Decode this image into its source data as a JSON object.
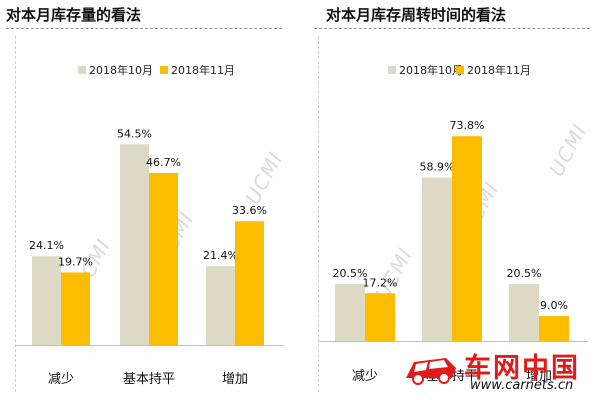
{
  "colors": {
    "oct": "#ddd9c4",
    "nov": "#fcbd00",
    "text": "#111111",
    "axis": "#bfbfbf",
    "brand_red": "#e11b1b",
    "watermark": "#afafaf"
  },
  "watermark_text": "UCMI",
  "site_badge": {
    "name": "车网中国",
    "url": "www.carnets.cn"
  },
  "chart_data": [
    {
      "type": "bar",
      "title": "对本月库存量的看法",
      "xlabel": "",
      "ylabel": "",
      "categories": [
        "减少",
        "基本持平",
        "增加"
      ],
      "series": [
        {
          "name": "2018年10月",
          "values": [
            24.1,
            54.5,
            21.4
          ],
          "labels": [
            "24.1%",
            "54.5%",
            "21.4%"
          ],
          "color": "#ddd9c4"
        },
        {
          "name": "2018年11月",
          "values": [
            19.7,
            46.7,
            33.6
          ],
          "labels": [
            "19.7%",
            "46.7%",
            "33.6%"
          ],
          "color": "#fcbd00"
        }
      ],
      "ylim": [
        0,
        60
      ],
      "grid": false,
      "legend_position": "top"
    },
    {
      "type": "bar",
      "title": "对本月库存周转时间的看法",
      "xlabel": "",
      "ylabel": "",
      "categories": [
        "减少",
        "基本持平",
        "增加"
      ],
      "series": [
        {
          "name": "2018年10月",
          "values": [
            20.5,
            58.9,
            20.5
          ],
          "labels": [
            "20.5%",
            "58.9%",
            "20.5%"
          ],
          "color": "#ddd9c4"
        },
        {
          "name": "2018年11月",
          "values": [
            17.2,
            73.8,
            9.0
          ],
          "labels": [
            "17.2%",
            "73.8%",
            "9.0%"
          ],
          "color": "#fcbd00"
        }
      ],
      "ylim": [
        0,
        80
      ],
      "grid": false,
      "legend_position": "top"
    }
  ]
}
